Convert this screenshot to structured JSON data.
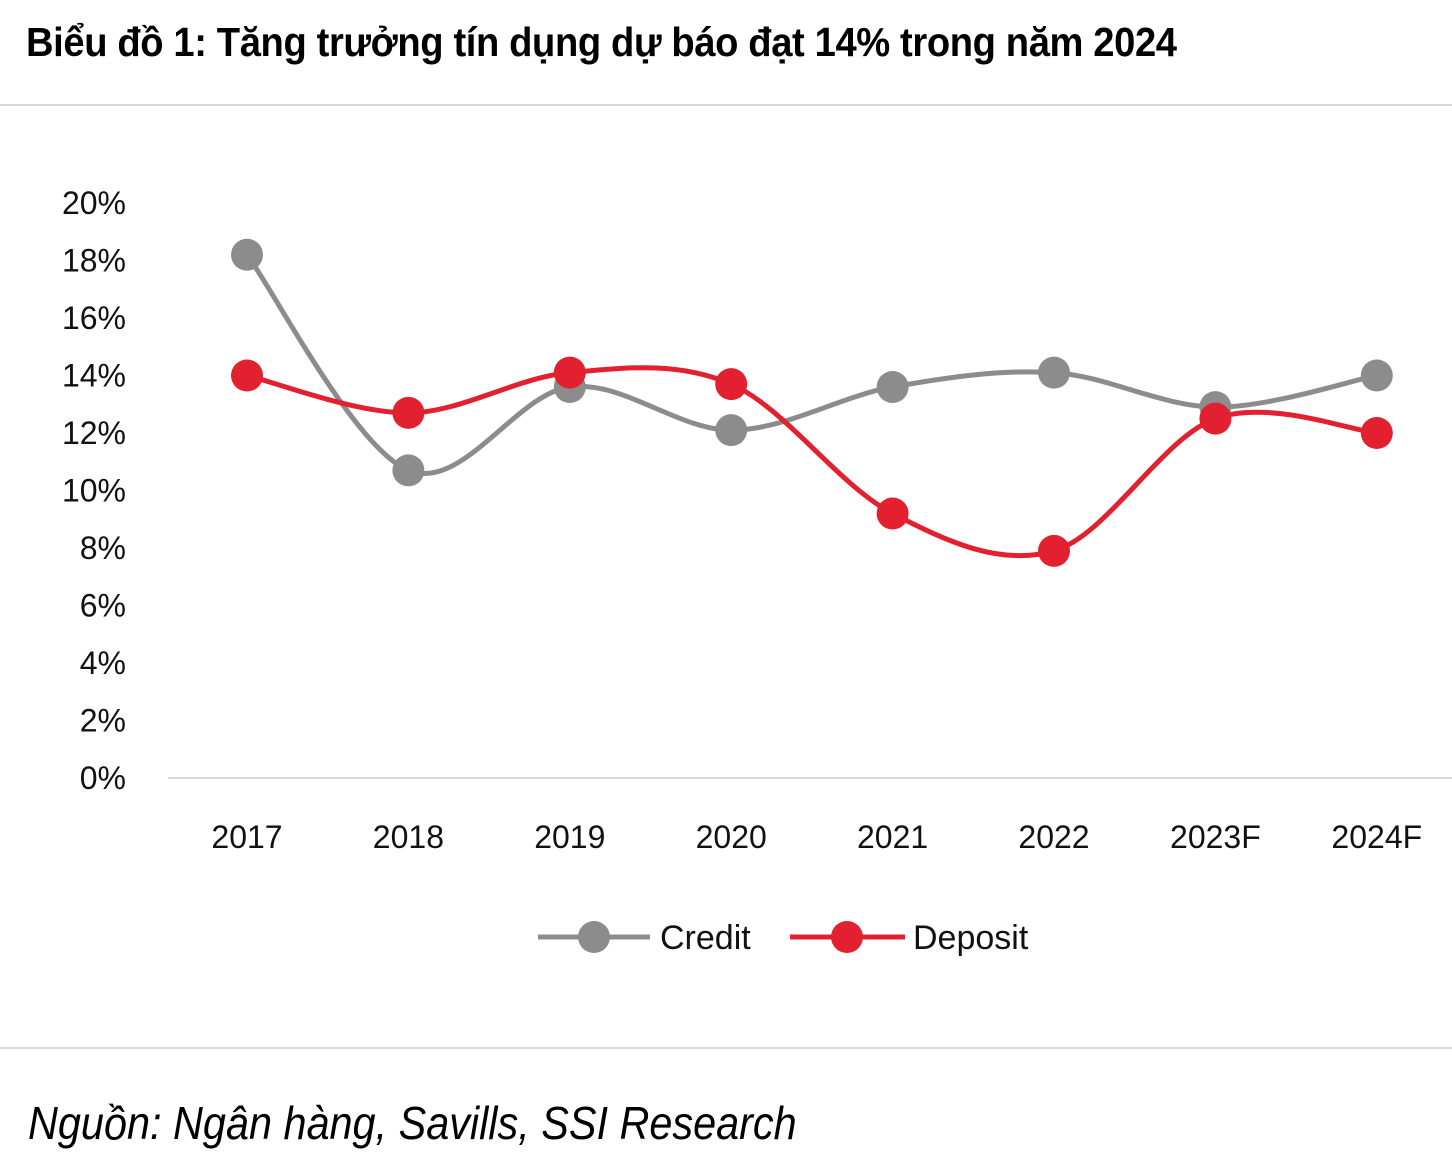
{
  "title": "Biểu đồ 1: Tăng trưởng tín dụng dự báo đạt 14% trong năm 2024",
  "source": "Nguồn: Ngân hàng, Savills, SSI Research",
  "colors": {
    "credit": "#8c8c8c",
    "deposit": "#e2202f",
    "axis": "#d9d9d9",
    "text": "#111111"
  },
  "chart_data": {
    "type": "line",
    "smooth": true,
    "title": "Biểu đồ 1: Tăng trưởng tín dụng dự báo đạt 14% trong năm 2024",
    "xlabel": "",
    "ylabel": "",
    "categories": [
      "2017",
      "2018",
      "2019",
      "2020",
      "2021",
      "2022",
      "2023F",
      "2024F"
    ],
    "ylim": [
      0,
      20
    ],
    "yticks": [
      0,
      2,
      4,
      6,
      8,
      10,
      12,
      14,
      16,
      18,
      20
    ],
    "ytick_labels": [
      "0%",
      "2%",
      "4%",
      "6%",
      "8%",
      "10%",
      "12%",
      "14%",
      "16%",
      "18%",
      "20%"
    ],
    "grid": false,
    "legend_position": "bottom-center",
    "series": [
      {
        "name": "Credit",
        "color": "#8c8c8c",
        "values": [
          18.2,
          10.7,
          13.6,
          12.1,
          13.6,
          14.1,
          12.9,
          14.0
        ]
      },
      {
        "name": "Deposit",
        "color": "#e2202f",
        "values": [
          14.0,
          12.7,
          14.1,
          13.7,
          9.2,
          7.9,
          12.5,
          12.0
        ]
      }
    ]
  }
}
